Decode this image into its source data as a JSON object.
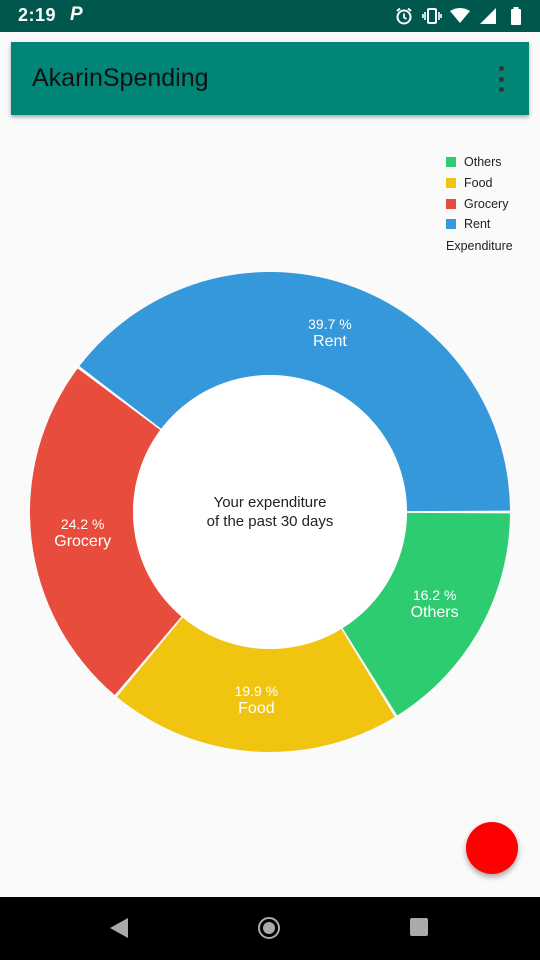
{
  "status_bar": {
    "time": "2:19",
    "notification_icon": "p-icon",
    "icons": [
      "alarm-icon",
      "vibrate-icon",
      "wifi-icon",
      "signal-icon",
      "battery-icon"
    ]
  },
  "app_bar": {
    "title": "AkarinSpending",
    "overflow_icon": "more-vert-icon"
  },
  "center_text": {
    "line1": "Your expenditure",
    "line2": "of the past 30 days"
  },
  "chart_data": {
    "type": "pie",
    "style": "donut",
    "legend_position": "top-right",
    "legend_description": "Expenditure",
    "categories": [
      "Others",
      "Food",
      "Grocery",
      "Rent"
    ],
    "values": [
      16.2,
      19.9,
      24.2,
      39.7
    ],
    "value_labels": [
      "16.2 %",
      "19.9 %",
      "24.2 %",
      "39.7 %"
    ],
    "colors": [
      "#2ecc71",
      "#f1c40f",
      "#e74c3c",
      "#3498db"
    ]
  },
  "fab": {
    "color": "#ff0000"
  },
  "nav_bar": {
    "icons": [
      "back-icon",
      "home-icon",
      "recents-icon"
    ]
  }
}
